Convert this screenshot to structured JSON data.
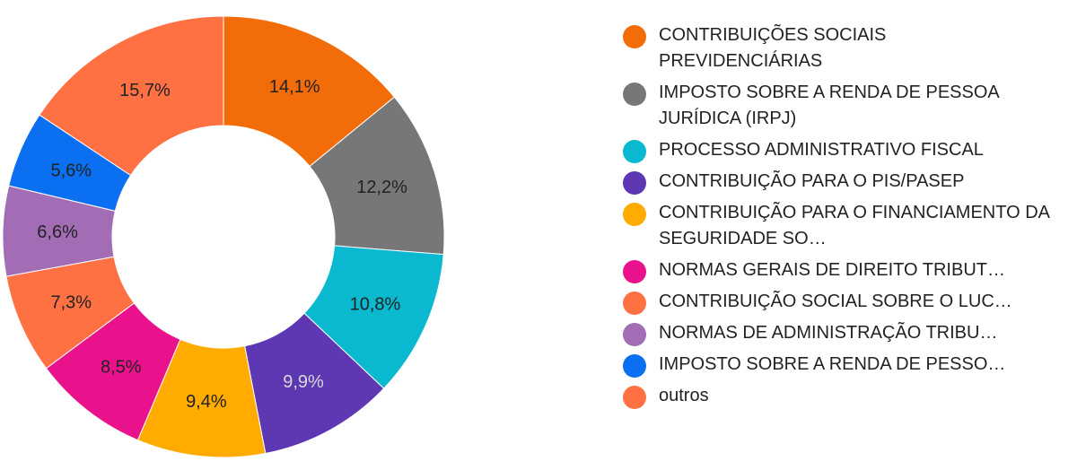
{
  "chart_data": {
    "type": "pie",
    "title": "",
    "donut": true,
    "legend_position": "right",
    "slices": [
      {
        "label": "CONTRIBUIÇÕES SOCIAIS PREVIDENCIÁRIAS",
        "value": 14.1,
        "value_label": "14,1%",
        "color": "#f36c0a",
        "label_color": "#222222"
      },
      {
        "label": "IMPOSTO SOBRE A RENDA DE PESSOA JURÍDICA (IRPJ)",
        "value": 12.2,
        "value_label": "12,2%",
        "color": "#777777",
        "label_color": "#222222"
      },
      {
        "label": "PROCESSO ADMINISTRATIVO FISCAL",
        "value": 10.8,
        "value_label": "10,8%",
        "color": "#0ab8cf",
        "label_color": "#222222"
      },
      {
        "label": "CONTRIBUIÇÃO PARA O PIS/PASEP",
        "value": 9.9,
        "value_label": "9,9%",
        "color": "#5e37b3",
        "label_color": "#d8d8d8"
      },
      {
        "label": "CONTRIBUIÇÃO PARA O FINANCIAMENTO DA SEGURIDADE SO…",
        "value": 9.4,
        "value_label": "9,4%",
        "color": "#ffab00",
        "label_color": "#222222"
      },
      {
        "label": "NORMAS GERAIS DE DIREITO TRIBUT…",
        "value": 8.5,
        "value_label": "8,5%",
        "color": "#ea118c",
        "label_color": "#222222"
      },
      {
        "label": "CONTRIBUIÇÃO SOCIAL SOBRE O LUC…",
        "value": 7.3,
        "value_label": "7,3%",
        "color": "#ff7043",
        "label_color": "#222222"
      },
      {
        "label": "NORMAS DE ADMINISTRAÇÃO TRIBU…",
        "value": 6.6,
        "value_label": "6,6%",
        "color": "#a26db5",
        "label_color": "#222222"
      },
      {
        "label": "IMPOSTO SOBRE A RENDA DE PESSO…",
        "value": 5.6,
        "value_label": "5,6%",
        "color": "#0a6ff0",
        "label_color": "#222222"
      },
      {
        "label": "outros",
        "value": 15.7,
        "value_label": "15,7%",
        "color": "#ff7043",
        "label_color": "#222222"
      }
    ]
  }
}
